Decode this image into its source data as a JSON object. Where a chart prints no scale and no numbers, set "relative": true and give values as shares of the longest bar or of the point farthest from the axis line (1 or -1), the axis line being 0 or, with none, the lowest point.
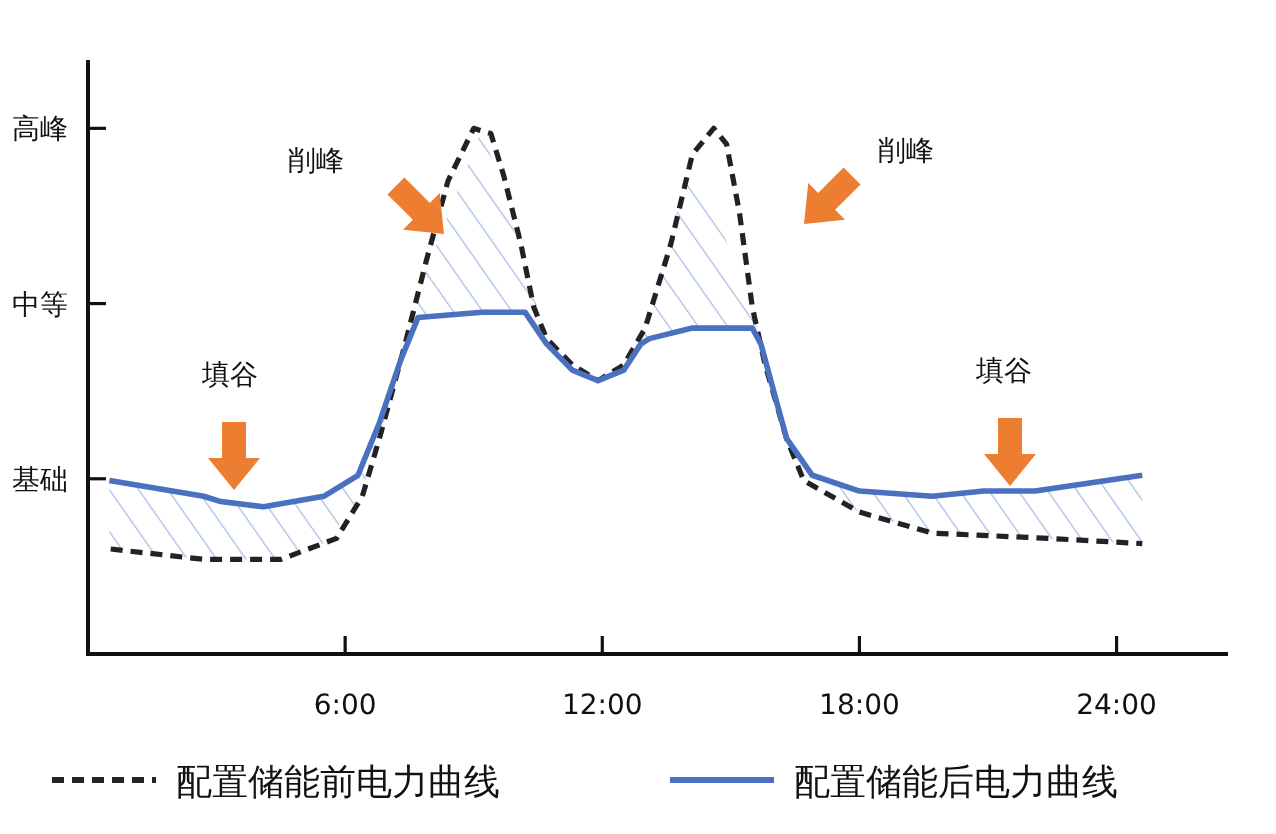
{
  "chart_data": {
    "type": "line",
    "relative": true,
    "xlim": [
      0,
      26.6
    ],
    "xticks": [
      {
        "value": 6,
        "label": "6:00"
      },
      {
        "value": 12,
        "label": "12:00"
      },
      {
        "value": 18,
        "label": "18:00"
      },
      {
        "value": 24,
        "label": "24:00"
      }
    ],
    "legend": "bottom",
    "marker": "none",
    "series": [
      {
        "name": "配置储能前电力曲线",
        "color": "#222222",
        "line_style": "dashed",
        "x": [
          0.5,
          2.7,
          4.5,
          5.8,
          6.4,
          6.8,
          7.4,
          7.9,
          8.4,
          9.0,
          9.4,
          9.7,
          10.1,
          10.4,
          10.7,
          11.3,
          11.9,
          12.5,
          13.0,
          13.6,
          14.1,
          14.6,
          14.9,
          15.2,
          15.5,
          15.8,
          16.3,
          16.7,
          18.0,
          19.7,
          22.4,
          24.6
        ],
        "values": [
          0.2,
          0.18,
          0.18,
          0.22,
          0.3,
          0.41,
          0.59,
          0.75,
          0.9,
          1.0,
          0.99,
          0.91,
          0.78,
          0.66,
          0.6,
          0.55,
          0.52,
          0.55,
          0.62,
          0.78,
          0.95,
          1.0,
          0.97,
          0.84,
          0.66,
          0.55,
          0.41,
          0.33,
          0.27,
          0.23,
          0.22,
          0.21
        ]
      },
      {
        "name": "配置储能后电力曲线",
        "color": "#4a70c0",
        "line_style": "solid",
        "x": [
          0.5,
          2.7,
          3.1,
          4.1,
          5.5,
          6.3,
          6.8,
          7.3,
          7.7,
          9.2,
          10.2,
          10.7,
          11.3,
          11.9,
          12.5,
          12.9,
          13.1,
          14.1,
          15.5,
          15.7,
          16.0,
          16.3,
          16.9,
          18.0,
          19.7,
          20.9,
          22.1,
          24.6
        ],
        "values": [
          0.33,
          0.3,
          0.29,
          0.28,
          0.3,
          0.34,
          0.44,
          0.56,
          0.64,
          0.65,
          0.65,
          0.59,
          0.54,
          0.52,
          0.54,
          0.59,
          0.6,
          0.62,
          0.62,
          0.59,
          0.5,
          0.41,
          0.34,
          0.31,
          0.3,
          0.31,
          0.31,
          0.34
        ],
        "lower": [
          0.2,
          0.18,
          0.18,
          0.18,
          0.21,
          0.29,
          0.41,
          0.56,
          0.64,
          0.65,
          0.65,
          0.59,
          0.54,
          0.52,
          0.54,
          0.59,
          0.6,
          0.62,
          0.62,
          0.59,
          0.5,
          0.41,
          0.32,
          0.27,
          0.23,
          0.23,
          0.22,
          0.21
        ],
        "upper": [
          0.33,
          0.3,
          0.29,
          0.28,
          0.3,
          0.34,
          0.44,
          0.56,
          0.69,
          1.0,
          0.74,
          0.6,
          0.55,
          0.52,
          0.55,
          0.61,
          0.65,
          0.95,
          0.66,
          0.59,
          0.51,
          0.41,
          0.34,
          0.31,
          0.3,
          0.31,
          0.31,
          0.34
        ]
      }
    ],
    "annotations": [
      "高峰",
      "中等",
      "基础",
      "削峰",
      "削峰",
      "填谷",
      "填谷"
    ]
  }
}
